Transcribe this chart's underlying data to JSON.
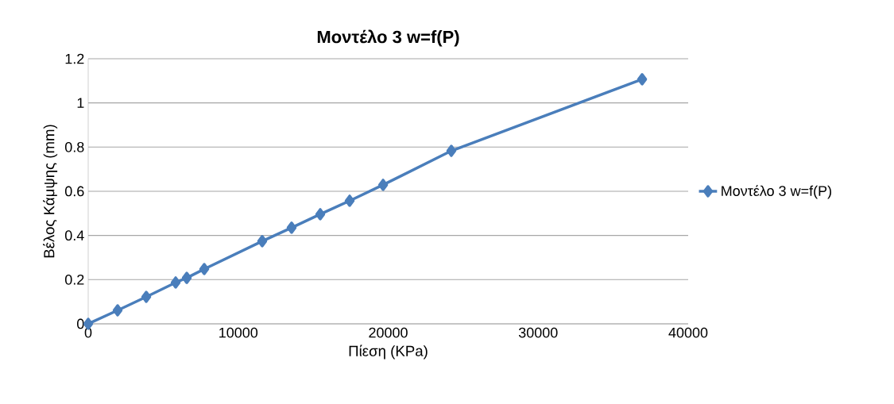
{
  "chart_data": {
    "type": "line",
    "title": "Μοντέλο 3 w=f(P)",
    "xlabel": "Πίεση (KPa)",
    "ylabel": "Βέλος Κάμψης (mm)",
    "x": [
      0,
      1960,
      3870,
      5830,
      6570,
      7735,
      11600,
      13560,
      15470,
      17430,
      19660,
      24210,
      36930
    ],
    "series": [
      {
        "name": "Μοντέλο 3 w=f(P)",
        "color": "#4a7ebb",
        "values": [
          0,
          0.061,
          0.122,
          0.187,
          0.208,
          0.248,
          0.374,
          0.435,
          0.496,
          0.557,
          0.629,
          0.783,
          1.107
        ]
      }
    ],
    "xlim": [
      0,
      40000
    ],
    "xticks": [
      0,
      10000,
      20000,
      30000,
      40000
    ],
    "ylim": [
      0,
      1.2
    ],
    "yticks": [
      0,
      0.2,
      0.4,
      0.6,
      0.8,
      1,
      1.2
    ],
    "grid": "y",
    "legend": "right",
    "marker": "diamond",
    "line_style": "solid"
  }
}
